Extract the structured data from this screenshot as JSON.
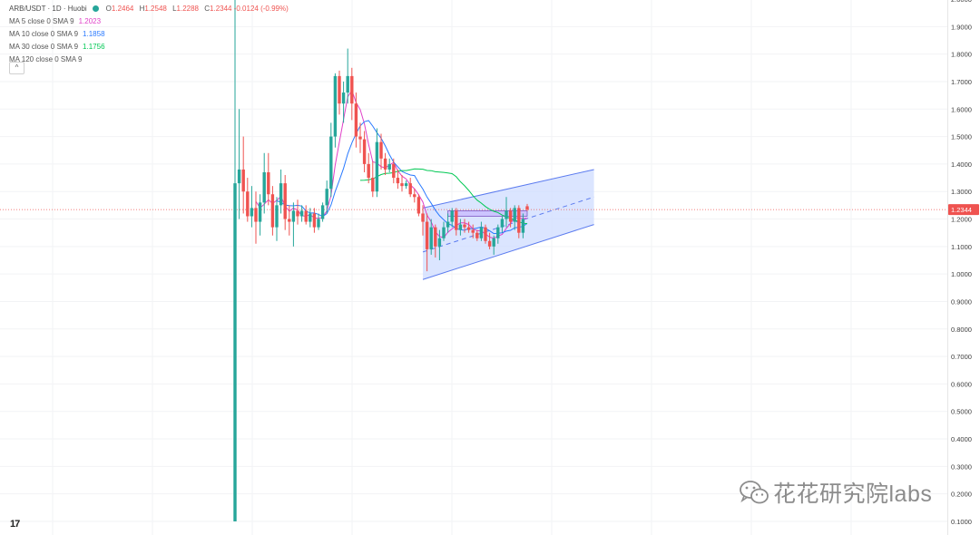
{
  "header": {
    "symbol": "ARB/USDT · 1D · Huobi",
    "status_color": "#26a69a",
    "ohlc": {
      "o_label": "O",
      "o": "1.2464",
      "h_label": "H",
      "h": "1.2548",
      "l_label": "L",
      "l": "1.2288",
      "c_label": "C",
      "c": "1.2344",
      "change": "-0.0124 (-0.99%)"
    }
  },
  "indicators": [
    {
      "label": "MA 5 close 0 SMA 9",
      "value": "1.2023",
      "color": "#e040c8"
    },
    {
      "label": "MA 10 close 0 SMA 9",
      "value": "1.1858",
      "color": "#2979ff"
    },
    {
      "label": "MA 30 close 0 SMA 9",
      "value": "1.1756",
      "color": "#00c853"
    },
    {
      "label": "MA 120 close 0 SMA 9",
      "value": "",
      "color": "#555555"
    }
  ],
  "controls": {
    "collapse_icon": "chevron-up-icon",
    "collapse_glyph": "^"
  },
  "logo": {
    "text": "17",
    "icon": "tradingview-logo-icon"
  },
  "watermark": {
    "text": "花花研究院labs",
    "icon": "wechat-icon"
  },
  "chart_data": {
    "type": "candlestick",
    "title": "ARB/USDT · 1D · Huobi",
    "y_axis": {
      "position": "right",
      "ylim": [
        0.1,
        2.0
      ],
      "ticks": [
        "2.0000",
        "1.9000",
        "1.8000",
        "1.7000",
        "1.6000",
        "1.5000",
        "1.4000",
        "1.3000",
        "1.2000",
        "1.1000",
        "1.0000",
        "0.9000",
        "0.8000",
        "0.7000",
        "0.6000",
        "0.5000",
        "0.4000",
        "0.3000",
        "0.2000",
        "0.1000"
      ]
    },
    "grid": true,
    "colors": {
      "up": "#26a69a",
      "down": "#ef5350",
      "channel_fill": "#cfdcff",
      "channel_line": "#5b7bef"
    },
    "last_price": {
      "value": 1.2344,
      "label": "1.2344"
    },
    "candles": [
      {
        "o": 0.1,
        "h": 2.0,
        "l": 0.1,
        "c": 1.33
      },
      {
        "o": 1.33,
        "h": 1.6,
        "l": 1.2,
        "c": 1.38
      },
      {
        "o": 1.38,
        "h": 1.5,
        "l": 1.22,
        "c": 1.3
      },
      {
        "o": 1.3,
        "h": 1.35,
        "l": 1.19,
        "c": 1.21
      },
      {
        "o": 1.21,
        "h": 1.32,
        "l": 1.17,
        "c": 1.24
      },
      {
        "o": 1.24,
        "h": 1.3,
        "l": 1.11,
        "c": 1.19
      },
      {
        "o": 1.19,
        "h": 1.29,
        "l": 1.14,
        "c": 1.26
      },
      {
        "o": 1.26,
        "h": 1.44,
        "l": 1.22,
        "c": 1.37
      },
      {
        "o": 1.37,
        "h": 1.44,
        "l": 1.25,
        "c": 1.29
      },
      {
        "o": 1.29,
        "h": 1.32,
        "l": 1.14,
        "c": 1.17
      },
      {
        "o": 1.17,
        "h": 1.28,
        "l": 1.12,
        "c": 1.25
      },
      {
        "o": 1.25,
        "h": 1.38,
        "l": 1.22,
        "c": 1.33
      },
      {
        "o": 1.33,
        "h": 1.36,
        "l": 1.16,
        "c": 1.2
      },
      {
        "o": 1.2,
        "h": 1.25,
        "l": 1.14,
        "c": 1.19
      },
      {
        "o": 1.19,
        "h": 1.26,
        "l": 1.1,
        "c": 1.23
      },
      {
        "o": 1.23,
        "h": 1.27,
        "l": 1.18,
        "c": 1.21
      },
      {
        "o": 1.21,
        "h": 1.25,
        "l": 1.19,
        "c": 1.23
      },
      {
        "o": 1.23,
        "h": 1.25,
        "l": 1.18,
        "c": 1.19
      },
      {
        "o": 1.19,
        "h": 1.24,
        "l": 1.17,
        "c": 1.22
      },
      {
        "o": 1.22,
        "h": 1.24,
        "l": 1.15,
        "c": 1.17
      },
      {
        "o": 1.17,
        "h": 1.22,
        "l": 1.16,
        "c": 1.2
      },
      {
        "o": 1.2,
        "h": 1.26,
        "l": 1.19,
        "c": 1.25
      },
      {
        "o": 1.25,
        "h": 1.34,
        "l": 1.22,
        "c": 1.31
      },
      {
        "o": 1.31,
        "h": 1.55,
        "l": 1.28,
        "c": 1.5
      },
      {
        "o": 1.5,
        "h": 1.73,
        "l": 1.46,
        "c": 1.72
      },
      {
        "o": 1.72,
        "h": 1.74,
        "l": 1.58,
        "c": 1.62
      },
      {
        "o": 1.62,
        "h": 1.7,
        "l": 1.55,
        "c": 1.66
      },
      {
        "o": 1.66,
        "h": 1.82,
        "l": 1.62,
        "c": 1.72
      },
      {
        "o": 1.72,
        "h": 1.75,
        "l": 1.56,
        "c": 1.62
      },
      {
        "o": 1.62,
        "h": 1.66,
        "l": 1.46,
        "c": 1.5
      },
      {
        "o": 1.5,
        "h": 1.55,
        "l": 1.44,
        "c": 1.49
      },
      {
        "o": 1.49,
        "h": 1.52,
        "l": 1.37,
        "c": 1.4
      },
      {
        "o": 1.4,
        "h": 1.44,
        "l": 1.33,
        "c": 1.35
      },
      {
        "o": 1.35,
        "h": 1.41,
        "l": 1.28,
        "c": 1.3
      },
      {
        "o": 1.3,
        "h": 1.53,
        "l": 1.28,
        "c": 1.48
      },
      {
        "o": 1.48,
        "h": 1.51,
        "l": 1.38,
        "c": 1.42
      },
      {
        "o": 1.42,
        "h": 1.44,
        "l": 1.36,
        "c": 1.38
      },
      {
        "o": 1.38,
        "h": 1.42,
        "l": 1.37,
        "c": 1.4
      },
      {
        "o": 1.4,
        "h": 1.42,
        "l": 1.33,
        "c": 1.35
      },
      {
        "o": 1.35,
        "h": 1.38,
        "l": 1.31,
        "c": 1.33
      },
      {
        "o": 1.33,
        "h": 1.36,
        "l": 1.3,
        "c": 1.32
      },
      {
        "o": 1.32,
        "h": 1.34,
        "l": 1.31,
        "c": 1.33
      },
      {
        "o": 1.33,
        "h": 1.35,
        "l": 1.28,
        "c": 1.29
      },
      {
        "o": 1.29,
        "h": 1.31,
        "l": 1.26,
        "c": 1.28
      },
      {
        "o": 1.28,
        "h": 1.29,
        "l": 1.21,
        "c": 1.22
      },
      {
        "o": 1.22,
        "h": 1.25,
        "l": 1.14,
        "c": 1.19
      },
      {
        "o": 1.19,
        "h": 1.22,
        "l": 1.01,
        "c": 1.09
      },
      {
        "o": 1.09,
        "h": 1.2,
        "l": 1.07,
        "c": 1.17
      },
      {
        "o": 1.17,
        "h": 1.18,
        "l": 1.06,
        "c": 1.1
      },
      {
        "o": 1.1,
        "h": 1.16,
        "l": 1.05,
        "c": 1.13
      },
      {
        "o": 1.13,
        "h": 1.19,
        "l": 1.12,
        "c": 1.17
      },
      {
        "o": 1.17,
        "h": 1.22,
        "l": 1.15,
        "c": 1.19
      },
      {
        "o": 1.19,
        "h": 1.24,
        "l": 1.17,
        "c": 1.23
      },
      {
        "o": 1.23,
        "h": 1.24,
        "l": 1.14,
        "c": 1.16
      },
      {
        "o": 1.16,
        "h": 1.2,
        "l": 1.14,
        "c": 1.18
      },
      {
        "o": 1.18,
        "h": 1.2,
        "l": 1.15,
        "c": 1.17
      },
      {
        "o": 1.17,
        "h": 1.19,
        "l": 1.15,
        "c": 1.16
      },
      {
        "o": 1.16,
        "h": 1.18,
        "l": 1.13,
        "c": 1.15
      },
      {
        "o": 1.15,
        "h": 1.16,
        "l": 1.12,
        "c": 1.13
      },
      {
        "o": 1.13,
        "h": 1.19,
        "l": 1.12,
        "c": 1.17
      },
      {
        "o": 1.17,
        "h": 1.18,
        "l": 1.11,
        "c": 1.12
      },
      {
        "o": 1.12,
        "h": 1.15,
        "l": 1.09,
        "c": 1.1
      },
      {
        "o": 1.1,
        "h": 1.14,
        "l": 1.07,
        "c": 1.13
      },
      {
        "o": 1.13,
        "h": 1.18,
        "l": 1.11,
        "c": 1.17
      },
      {
        "o": 1.17,
        "h": 1.21,
        "l": 1.15,
        "c": 1.2
      },
      {
        "o": 1.2,
        "h": 1.28,
        "l": 1.17,
        "c": 1.23
      },
      {
        "o": 1.23,
        "h": 1.24,
        "l": 1.17,
        "c": 1.19
      },
      {
        "o": 1.19,
        "h": 1.25,
        "l": 1.16,
        "c": 1.24
      },
      {
        "o": 1.24,
        "h": 1.25,
        "l": 1.13,
        "c": 1.15
      },
      {
        "o": 1.15,
        "h": 1.22,
        "l": 1.13,
        "c": 1.2
      },
      {
        "o": 1.2464,
        "h": 1.2548,
        "l": 1.2288,
        "c": 1.2344
      }
    ],
    "moving_averages": [
      {
        "label": "MA 5",
        "color": "#e040c8",
        "period": 5
      },
      {
        "label": "MA 10",
        "color": "#2979ff",
        "period": 10
      },
      {
        "label": "MA 30",
        "color": "#00c853",
        "period": 30
      }
    ],
    "channel": {
      "start_index": 45,
      "end_index": 86,
      "upper": [
        1.24,
        1.38
      ],
      "mid": [
        1.08,
        1.28
      ],
      "lower": [
        0.98,
        1.18
      ]
    },
    "range_box": {
      "start_index": 51,
      "end_index": 70,
      "top": 1.23,
      "bottom": 1.21
    }
  }
}
